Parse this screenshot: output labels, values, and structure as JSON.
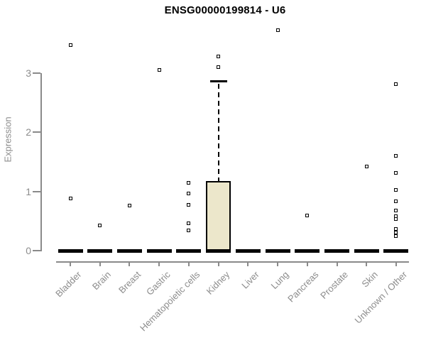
{
  "chart_data": {
    "type": "box",
    "title": "ENSG00000199814 - U6",
    "ylabel": "Expression",
    "xlabel": "",
    "yticks": [
      0,
      1,
      2,
      3
    ],
    "ylim": [
      0,
      3.8
    ],
    "grid": false,
    "legend": "none",
    "categories": [
      "Bladder",
      "Brain",
      "Breast",
      "Gastric",
      "Hematopoietic cells",
      "Kidney",
      "Liver",
      "Lung",
      "Pancreas",
      "Prostate",
      "Skin",
      "Unknown / Other"
    ],
    "boxes": [
      {
        "category": "Bladder",
        "q1": 0,
        "median": 0,
        "q3": 0,
        "whisker_low": 0,
        "whisker_high": 0,
        "outliers": [
          3.47,
          0.88
        ]
      },
      {
        "category": "Brain",
        "q1": 0,
        "median": 0,
        "q3": 0,
        "whisker_low": 0,
        "whisker_high": 0,
        "outliers": [
          0.43
        ]
      },
      {
        "category": "Breast",
        "q1": 0,
        "median": 0,
        "q3": 0,
        "whisker_low": 0,
        "whisker_high": 0,
        "outliers": [
          0.76
        ]
      },
      {
        "category": "Gastric",
        "q1": 0,
        "median": 0,
        "q3": 0,
        "whisker_low": 0,
        "whisker_high": 0,
        "outliers": [
          3.05
        ]
      },
      {
        "category": "Hematopoietic cells",
        "q1": 0,
        "median": 0,
        "q3": 0,
        "whisker_low": 0,
        "whisker_high": 0,
        "outliers": [
          1.15,
          0.97,
          0.78,
          0.46,
          0.34
        ]
      },
      {
        "category": "Kidney",
        "q1": 0,
        "median": 0,
        "q3": 1.18,
        "whisker_low": 0,
        "whisker_high": 2.87,
        "outliers": [
          3.28,
          3.1
        ]
      },
      {
        "category": "Liver",
        "q1": 0,
        "median": 0,
        "q3": 0,
        "whisker_low": 0,
        "whisker_high": 0,
        "outliers": []
      },
      {
        "category": "Lung",
        "q1": 0,
        "median": 0,
        "q3": 0,
        "whisker_low": 0,
        "whisker_high": 0,
        "outliers": [
          3.73
        ]
      },
      {
        "category": "Pancreas",
        "q1": 0,
        "median": 0,
        "q3": 0,
        "whisker_low": 0,
        "whisker_high": 0,
        "outliers": [
          0.6
        ]
      },
      {
        "category": "Prostate",
        "q1": 0,
        "median": 0,
        "q3": 0,
        "whisker_low": 0,
        "whisker_high": 0,
        "outliers": []
      },
      {
        "category": "Skin",
        "q1": 0,
        "median": 0,
        "q3": 0,
        "whisker_low": 0,
        "whisker_high": 0,
        "outliers": [
          1.42
        ]
      },
      {
        "category": "Unknown / Other",
        "q1": 0,
        "median": 0,
        "q3": 0,
        "whisker_low": 0,
        "whisker_high": 0,
        "outliers": [
          2.82,
          1.6,
          1.32,
          1.03,
          0.84,
          0.68,
          0.58,
          0.53,
          0.37,
          0.31,
          0.25
        ]
      }
    ],
    "colors": {
      "box_fill": "#ece7cb",
      "box_border": "#000000",
      "median": "#000000",
      "outlier_fill": "#ffffff",
      "outlier_border": "#000000",
      "axis": "#8a8a8a",
      "tick_label": "#8c8c8c",
      "title": "#000000"
    }
  }
}
